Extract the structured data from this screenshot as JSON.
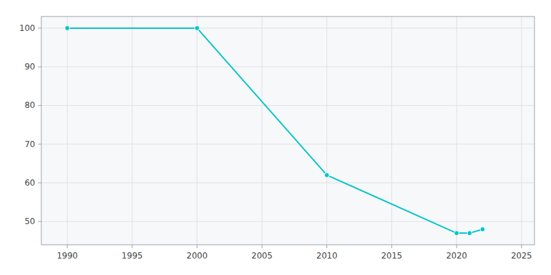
{
  "chart_data": {
    "type": "line",
    "x": [
      1990,
      2000,
      2010,
      2020,
      2021,
      2022
    ],
    "values": [
      100,
      100,
      62,
      47,
      47,
      48
    ],
    "color": "#00C5C8",
    "marker": "circle",
    "xlim": [
      1988,
      2026
    ],
    "ylim": [
      44,
      103
    ],
    "xticks": [
      1990,
      1995,
      2000,
      2005,
      2010,
      2015,
      2020,
      2025
    ],
    "yticks": [
      50,
      60,
      70,
      80,
      90,
      100
    ],
    "grid": true
  }
}
